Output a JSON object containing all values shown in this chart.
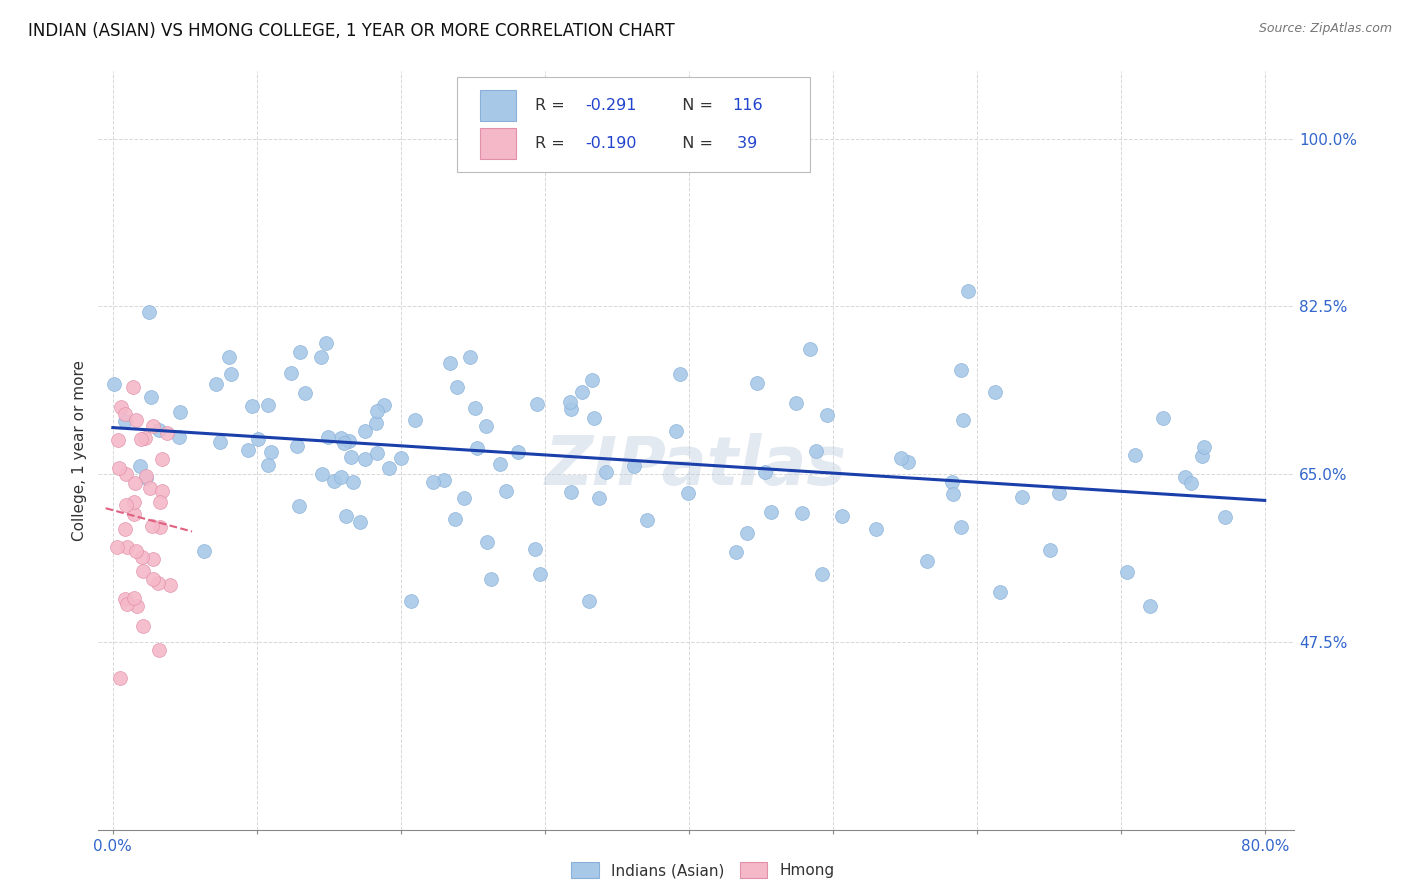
{
  "title": "INDIAN (ASIAN) VS HMONG COLLEGE, 1 YEAR OR MORE CORRELATION CHART",
  "source": "Source: ZipAtlas.com",
  "ylabel": "College, 1 year or more",
  "xlim": [
    -0.01,
    0.82
  ],
  "ylim": [
    0.28,
    1.07
  ],
  "x_ticks": [
    0.0,
    0.1,
    0.2,
    0.3,
    0.4,
    0.5,
    0.6,
    0.7,
    0.8
  ],
  "x_tick_labels": [
    "0.0%",
    "",
    "",
    "",
    "",
    "",
    "",
    "",
    "80.0%"
  ],
  "y_ticks": [
    0.475,
    0.65,
    0.825,
    1.0
  ],
  "y_tick_labels": [
    "47.5%",
    "65.0%",
    "82.5%",
    "100.0%"
  ],
  "watermark": "ZIPatlas",
  "indian_R": -0.291,
  "indian_N": 116,
  "hmong_R": -0.19,
  "hmong_N": 39,
  "indian_color": "#a8c8e8",
  "indian_edge": "#88b0d8",
  "hmong_color": "#f5b8c8",
  "hmong_edge": "#e090a8",
  "trendline_indian_color": "#1a3faa",
  "trendline_hmong_color": "#e06080",
  "background_color": "#ffffff",
  "grid_color": "#d8d8d8",
  "title_fontsize": 12,
  "axis_label_fontsize": 11,
  "tick_label_fontsize": 11,
  "tick_label_color": "#3366cc",
  "seed": 7
}
